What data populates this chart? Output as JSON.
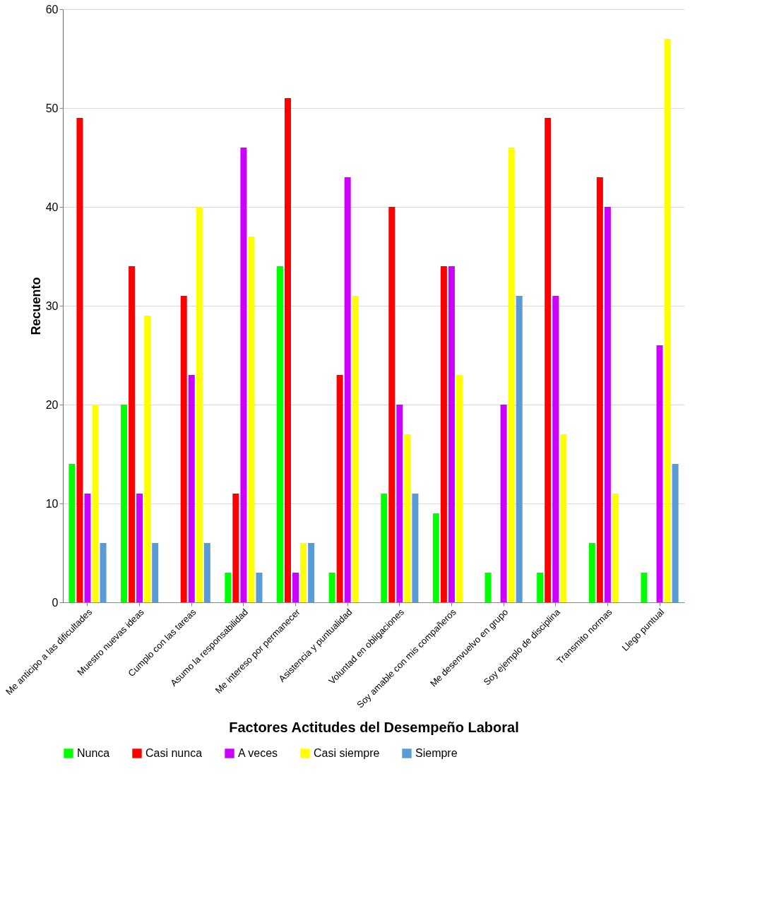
{
  "chart_data": {
    "type": "bar",
    "xlabel": "Factores Actitudes del Desempeño Laboral",
    "ylabel": "Recuento",
    "categories": [
      "Me anticipo a las dificultades",
      "Muestro nuevas ideas",
      "Cumplo con las tareas",
      "Asumo la responsabilidad",
      "Me intereso por permanecer",
      "Asistencia y puntualidad",
      "Voluntad en obligaciones",
      "Soy amable con mis compañeros",
      "Me desenvuelvo en grupo",
      "Soy ejemplo de disciplina",
      "Transmito normas",
      "Llego puntual"
    ],
    "series": [
      {
        "name": "Nunca",
        "color": "#00ff00",
        "values": [
          14,
          20,
          null,
          3,
          34,
          3,
          11,
          9,
          3,
          3,
          6,
          3
        ]
      },
      {
        "name": "Casi nunca",
        "color": "#ff0000",
        "values": [
          49,
          34,
          31,
          11,
          51,
          23,
          40,
          34,
          null,
          49,
          43,
          null
        ]
      },
      {
        "name": "A veces",
        "color": "#cc00ff",
        "values": [
          11,
          11,
          23,
          46,
          3,
          43,
          20,
          34,
          20,
          31,
          40,
          26
        ]
      },
      {
        "name": "Casi siempre",
        "color": "#ffff00",
        "values": [
          20,
          29,
          40,
          37,
          6,
          31,
          17,
          23,
          46,
          17,
          11,
          57
        ]
      },
      {
        "name": "Siempre",
        "color": "#5b9bd5",
        "values": [
          6,
          6,
          6,
          3,
          6,
          null,
          11,
          null,
          31,
          null,
          null,
          14
        ]
      }
    ],
    "ylim": [
      0,
      60
    ],
    "yticks": [
      0,
      10,
      20,
      30,
      40,
      50,
      60
    ],
    "grid": "y",
    "legend": "bottom"
  }
}
